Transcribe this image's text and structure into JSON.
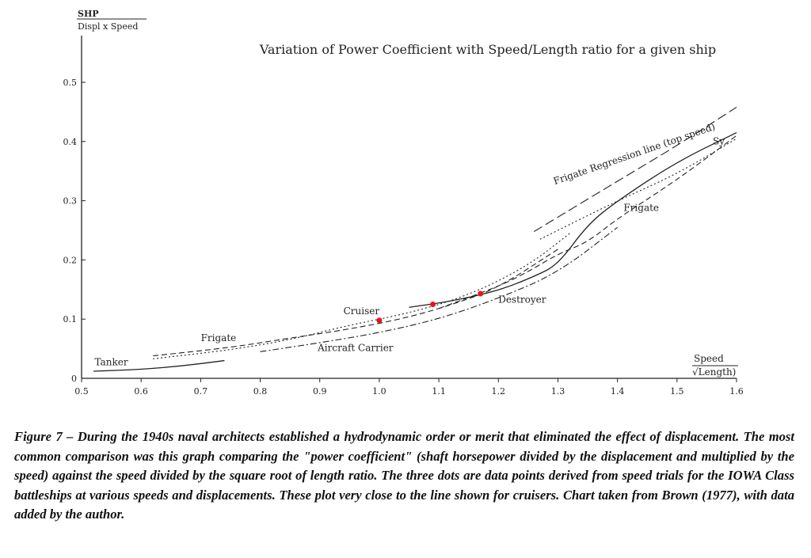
{
  "chart_data": {
    "type": "line",
    "title": "Variation of Power Coefficient with Speed/Length ratio for a given ship",
    "ylabel": {
      "numerator": "SHP",
      "denominator": "Displ x Speed"
    },
    "xlabel": {
      "numerator": "Speed",
      "denominator": "√Length)"
    },
    "xlim": [
      0.5,
      1.6
    ],
    "ylim": [
      0,
      0.55
    ],
    "x_ticks": [
      {
        "value": 0.5,
        "label": "0.5"
      },
      {
        "value": 0.6,
        "label": "0.6"
      },
      {
        "value": 0.7,
        "label": "0.7"
      },
      {
        "value": 0.8,
        "label": "0.8"
      },
      {
        "value": 0.9,
        "label": "0.9"
      },
      {
        "value": 1.0,
        "label": "1.0"
      },
      {
        "value": 1.1,
        "label": "1.1"
      },
      {
        "value": 1.2,
        "label": "1.2"
      },
      {
        "value": 1.3,
        "label": "1.3"
      },
      {
        "value": 1.4,
        "label": "1.4"
      },
      {
        "value": 1.5,
        "label": "1.5"
      },
      {
        "value": 1.6,
        "label": "1.6"
      }
    ],
    "y_ticks": [
      {
        "value": 0,
        "label": "0"
      },
      {
        "value": 0.1,
        "label": "0.1"
      },
      {
        "value": 0.2,
        "label": "0.2"
      },
      {
        "value": 0.3,
        "label": "0.3"
      },
      {
        "value": 0.4,
        "label": "0.4"
      },
      {
        "value": 0.5,
        "label": "0.5"
      }
    ],
    "grid": false,
    "series": [
      {
        "name": "Tanker",
        "style": "solid",
        "points": [
          [
            0.52,
            0.012
          ],
          [
            0.6,
            0.015
          ],
          [
            0.67,
            0.021
          ],
          [
            0.74,
            0.03
          ]
        ]
      },
      {
        "name": "Frigate",
        "style": "dashed",
        "points": [
          [
            0.62,
            0.038
          ],
          [
            0.75,
            0.052
          ],
          [
            0.85,
            0.068
          ],
          [
            0.95,
            0.083
          ],
          [
            1.05,
            0.103
          ],
          [
            1.13,
            0.127
          ],
          [
            1.2,
            0.153
          ],
          [
            1.3,
            0.218
          ]
        ]
      },
      {
        "name": "Frigate",
        "style": "solid",
        "points": [
          [
            1.05,
            0.12
          ],
          [
            1.12,
            0.13
          ],
          [
            1.2,
            0.148
          ],
          [
            1.26,
            0.172
          ],
          [
            1.3,
            0.192
          ],
          [
            1.35,
            0.26
          ],
          [
            1.4,
            0.3
          ],
          [
            1.5,
            0.366
          ],
          [
            1.6,
            0.415
          ]
        ]
      },
      {
        "name": "Cruiser",
        "style": "dotted",
        "points": [
          [
            0.62,
            0.033
          ],
          [
            0.75,
            0.048
          ],
          [
            0.85,
            0.065
          ],
          [
            0.95,
            0.09
          ],
          [
            1.05,
            0.11
          ],
          [
            1.15,
            0.14
          ],
          [
            1.25,
            0.19
          ],
          [
            1.32,
            0.245
          ]
        ]
      },
      {
        "name": "Aircraft Carrier",
        "style": "dash-dot",
        "points": [
          [
            0.8,
            0.045
          ],
          [
            0.9,
            0.06
          ],
          [
            1.0,
            0.077
          ],
          [
            1.1,
            0.1
          ],
          [
            1.2,
            0.135
          ],
          [
            1.3,
            0.178
          ],
          [
            1.4,
            0.255
          ]
        ]
      },
      {
        "name": "Destroyer",
        "style": "dashed",
        "points": [
          [
            1.1,
            0.118
          ],
          [
            1.2,
            0.155
          ],
          [
            1.25,
            0.18
          ],
          [
            1.3,
            0.21
          ],
          [
            1.35,
            0.23
          ],
          [
            1.4,
            0.27
          ],
          [
            1.5,
            0.335
          ],
          [
            1.6,
            0.41
          ]
        ]
      },
      {
        "name": "Sy",
        "style": "dotted",
        "points": [
          [
            1.27,
            0.235
          ],
          [
            1.4,
            0.3
          ],
          [
            1.5,
            0.345
          ],
          [
            1.6,
            0.405
          ]
        ]
      },
      {
        "name": "Frigate Regression line (top speed)",
        "style": "long-dash",
        "points": [
          [
            1.26,
            0.248
          ],
          [
            1.4,
            0.333
          ],
          [
            1.5,
            0.393
          ],
          [
            1.6,
            0.458
          ]
        ]
      },
      {
        "name": "IOWA trials",
        "style": "markers",
        "points": [
          [
            1.0,
            0.098
          ],
          [
            1.09,
            0.125
          ],
          [
            1.17,
            0.143
          ]
        ]
      }
    ],
    "annotations": [
      {
        "text": "Tanker",
        "x": 0.55,
        "y": 0.022
      },
      {
        "text": "Frigate",
        "x": 0.73,
        "y": 0.063
      },
      {
        "text": "Cruiser",
        "x": 0.97,
        "y": 0.108
      },
      {
        "text": "Aircraft Carrier",
        "x": 0.96,
        "y": 0.046
      },
      {
        "text": "Destroyer",
        "x": 1.24,
        "y": 0.128
      },
      {
        "text": "Frigate",
        "x": 1.44,
        "y": 0.283
      },
      {
        "text": "Sy",
        "x": 1.57,
        "y": 0.395
      },
      {
        "text": "Frigate Regression line (top speed)",
        "x": 1.43,
        "y": 0.374
      }
    ]
  },
  "caption": "Figure 7 – During the 1940s naval architects established a hydrodynamic order or merit that eliminated the effect of displacement. The most common comparison was this graph comparing the \"power coefficient\" (shaft horsepower divided by the displacement and multiplied by the speed) against the speed divided by the square root of length ratio.  The three dots are data points derived from speed trials for the IOWA Class battleships at various speeds and displacements. These plot very close to the line shown for cruisers. Chart taken from Brown (1977), with data added by the author.",
  "colors": {
    "ink": "#222222",
    "marker": "#e8141b"
  }
}
